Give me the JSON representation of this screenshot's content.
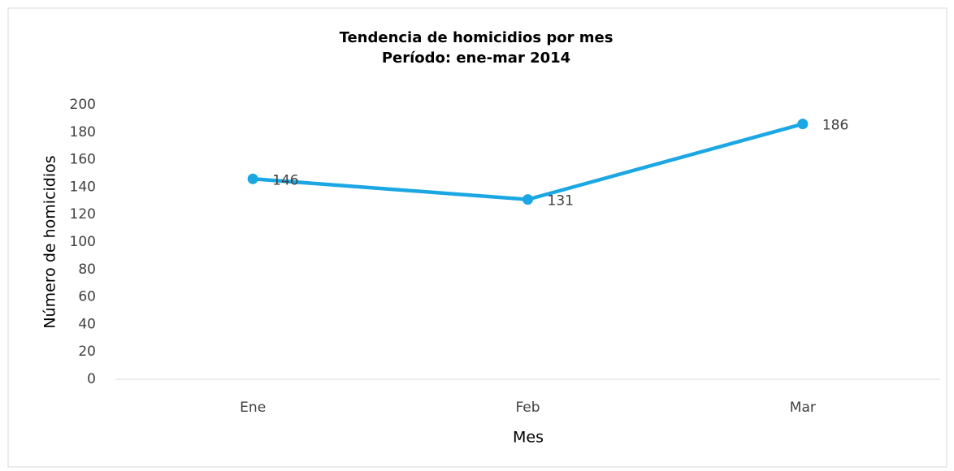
{
  "chart_data": {
    "type": "line",
    "title": "Tendencia de homicidios por mes",
    "subtitle": "Período: ene-mar 2014",
    "x_label": "Mes",
    "y_label": "Número de homicidios",
    "categories": [
      "Ene",
      "Feb",
      "Mar"
    ],
    "series": [
      {
        "name": "Homicidios",
        "color": "#1aa7e3",
        "values": [
          146,
          131,
          186
        ]
      }
    ],
    "ylim": [
      0,
      200
    ],
    "yticks": [
      0,
      20,
      40,
      60,
      80,
      100,
      120,
      140,
      160,
      180,
      200
    ],
    "grid": false
  }
}
